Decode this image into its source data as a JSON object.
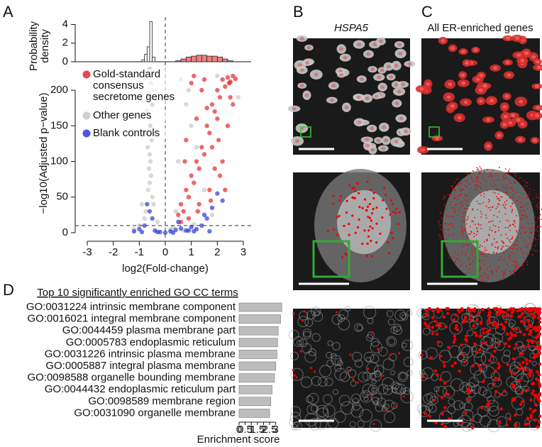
{
  "panel_labels": [
    "A",
    "B",
    "C",
    "D"
  ],
  "images": {
    "B_title": "HSPA5",
    "C_title": "All ER-enriched genes"
  },
  "chart_data": [
    {
      "type": "scatter",
      "xlabel": "log2(Fold-change)",
      "ylabel": "−log10(Adjusted p−value)",
      "xlim": [
        -3.3,
        3.3
      ],
      "xticks": [
        -3,
        -2,
        -1,
        0,
        1,
        2,
        3
      ],
      "ylim": [
        -10,
        232
      ],
      "yticks": [
        0,
        50,
        100,
        150,
        200
      ],
      "vlines": [
        0
      ],
      "hlines": [
        10
      ],
      "legend": "upper left",
      "series": [
        {
          "name": "Gold-standard consensus secretome genes",
          "color": "#e8262a",
          "x": [
            0.6,
            0.8,
            1.0,
            1.2,
            1.4,
            1.6,
            1.8,
            2.0,
            2.2,
            2.4,
            2.6,
            0.7,
            0.9,
            1.1,
            1.3,
            1.5,
            1.7,
            1.9,
            2.1,
            2.3,
            2.5,
            2.7,
            0.5,
            0.8,
            1.2,
            1.6,
            2.0,
            2.4,
            1.0,
            1.4,
            1.8,
            2.2,
            0.9,
            1.3,
            1.7,
            2.1,
            2.5,
            0.6,
            1.1,
            1.5,
            1.9,
            2.3,
            2.6,
            0.75,
            1.25,
            1.75,
            2.05,
            2.45
          ],
          "y": [
            40,
            60,
            80,
            100,
            120,
            150,
            180,
            200,
            215,
            218,
            220,
            30,
            50,
            70,
            90,
            110,
            140,
            170,
            190,
            205,
            212,
            216,
            25,
            130,
            160,
            175,
            160,
            150,
            210,
            200,
            120,
            100,
            20,
            40,
            60,
            80,
            190,
            15,
            220,
            215,
            90,
            60,
            180,
            100,
            30,
            45,
            130,
            210
          ]
        },
        {
          "name": "Other genes",
          "color": "#c8c8c8",
          "x": [
            -0.6,
            -0.55,
            -0.65,
            -0.5,
            -0.7,
            -0.6,
            -0.58,
            -0.62,
            -0.52,
            -0.68,
            -0.6,
            -0.57,
            -0.63,
            -0.55,
            -0.6,
            -0.66,
            -0.5,
            -0.45,
            -0.75,
            -0.8,
            -1.0,
            -1.2,
            -0.3,
            0.2,
            0.5,
            0.8,
            1.0,
            1.2,
            1.5,
            0.4,
            0.6,
            0.9,
            2.0,
            2.5,
            2.8,
            0.3,
            0.7,
            -0.9,
            1.1,
            1.8
          ],
          "y": [
            230,
            210,
            195,
            180,
            170,
            160,
            150,
            140,
            130,
            120,
            110,
            100,
            90,
            80,
            70,
            60,
            50,
            40,
            30,
            20,
            10,
            5,
            15,
            5,
            100,
            180,
            150,
            120,
            60,
            30,
            215,
            200,
            220,
            210,
            190,
            8,
            3,
            40,
            12,
            25
          ]
        },
        {
          "name": "Blank controls",
          "color": "#2b3bd6",
          "x": [
            -1.2,
            -1.0,
            -0.8,
            -0.6,
            -0.4,
            -0.2,
            0,
            0.2,
            0.4,
            0.6,
            0.8,
            1.0,
            1.2,
            1.4,
            1.6,
            1.8,
            2.0,
            -0.7,
            -0.5,
            0.5,
            1.5,
            2.2,
            -0.9,
            0.3,
            1.1,
            -0.3,
            0.9,
            1.7
          ],
          "y": [
            2,
            5,
            10,
            30,
            3,
            1,
            0,
            2,
            4,
            6,
            3,
            8,
            5,
            10,
            20,
            35,
            55,
            40,
            20,
            15,
            25,
            45,
            1,
            0,
            2,
            1,
            3,
            2
          ]
        }
      ]
    },
    {
      "type": "histogram",
      "ylabel": "Probability density",
      "xlim": [
        -3.3,
        3.3
      ],
      "ylim": [
        0,
        4.5
      ],
      "yticks": [
        0,
        2,
        4
      ],
      "series": [
        {
          "color": "#ffffff",
          "bins": [
            -0.9,
            -0.8,
            -0.7,
            -0.6,
            -0.5,
            -0.4
          ],
          "values": [
            0.2,
            0.8,
            1.6,
            4.3,
            0.5
          ]
        },
        {
          "color": "#f08080",
          "bins": [
            0.4,
            0.6,
            0.8,
            1.0,
            1.2,
            1.4,
            1.6,
            1.8,
            2.0,
            2.2,
            2.4,
            2.6
          ],
          "values": [
            0.1,
            0.3,
            0.5,
            0.6,
            0.7,
            0.7,
            0.6,
            0.6,
            0.5,
            0.3,
            0.1
          ]
        }
      ]
    },
    {
      "type": "hbar",
      "title": "Top 10 significantly enriched GO CC terms",
      "xlabel": "Enrichment score",
      "categories": [
        "GO:0031224 intrinsic membrane component",
        "GO:0016021 integral membrane component",
        "GO:0044459 plasma membrane part",
        "GO:0005783 endoplasmic reticulum",
        "GO:0031226 intrinsic plasma membrane",
        "GO:0005887 integral plasma membrane",
        "GO:0098588 organelle bounding membrane",
        "GO:0044432 endoplasmic reticulum part",
        "GO:0098589 membrane region",
        "GO:0031090 organelle membrane"
      ],
      "values": [
        3.5,
        3.4,
        3.2,
        3.15,
        3.1,
        3.0,
        2.9,
        2.7,
        2.6,
        2.5
      ],
      "color": "#bdbdbd",
      "xlim": [
        0,
        3.6
      ],
      "xticks": [
        0,
        0.5,
        1,
        1.5,
        2,
        2.5,
        3
      ]
    }
  ]
}
